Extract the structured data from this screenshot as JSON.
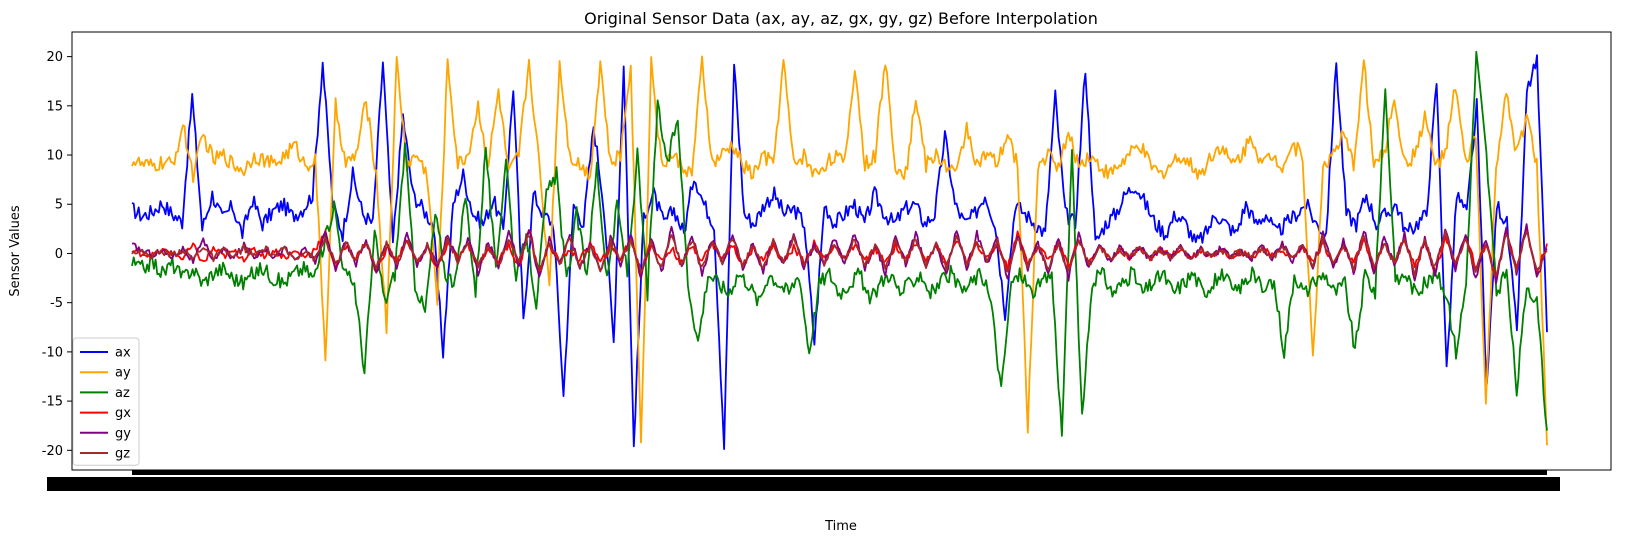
{
  "chart_data": {
    "type": "line",
    "title": "Original Sensor Data (ax, ay, az, gx, gy, gz) Before Interpolation",
    "xlabel": "Time",
    "ylabel": "Sensor Values",
    "ylim": [
      -22,
      22.5
    ],
    "yticks": [
      -20,
      -15,
      -10,
      -5,
      0,
      5,
      10,
      15,
      20
    ],
    "xlim": [
      0,
      1
    ],
    "grid": false,
    "legend": "lower-left",
    "x_tick_labels_note": "",
    "series": [
      {
        "name": "ax",
        "color": "#0000ff",
        "values": [
          4.5,
          3.8,
          4.2,
          5.1,
          4.0,
          3.2,
          16.0,
          2.5,
          6.0,
          3.5,
          4.8,
          2.0,
          5.5,
          3.0,
          4.2,
          5.0,
          3.8,
          4.5,
          6.0,
          19.5,
          5.0,
          2.0,
          8.0,
          4.0,
          3.0,
          19.5,
          1.0,
          14.0,
          6.0,
          4.5,
          3.0,
          -10.0,
          5.0,
          8.0,
          4.0,
          3.0,
          5.5,
          2.5,
          17.0,
          -7.0,
          6.0,
          4.0,
          3.0,
          -14.5,
          5.0,
          3.0,
          13.0,
          5.0,
          -9.0,
          19.5,
          -19.5,
          4.0,
          6.0,
          3.0,
          4.5,
          2.0,
          8.0,
          5.0,
          3.0,
          -19.5,
          19.5,
          4.0,
          3.0,
          5.0,
          6.0,
          4.0,
          4.5,
          3.0,
          -9.0,
          5.0,
          3.0,
          4.0,
          5.0,
          3.0,
          6.0,
          4.0,
          3.0,
          4.5,
          5.0,
          3.0,
          4.0,
          12.0,
          5.0,
          3.0,
          4.0,
          6.0,
          3.0,
          -6.0,
          5.0,
          4.0,
          3.0,
          2.0,
          16.0,
          4.0,
          3.0,
          19.0,
          1.0,
          3.0,
          4.0,
          6.0,
          7.0,
          5.0,
          3.0,
          2.0,
          4.0,
          3.0,
          1.0,
          2.0,
          4.0,
          3.0,
          2.0,
          5.0,
          3.0,
          4.0,
          2.0,
          3.0,
          4.0,
          5.0,
          3.0,
          2.0,
          19.5,
          4.0,
          3.0,
          6.0,
          3.0,
          4.0,
          5.0,
          2.0,
          3.0,
          4.0,
          17.5,
          -12.0,
          6.0,
          4.0,
          15.0,
          -14.0,
          5.0,
          3.0,
          -8.0,
          16.5,
          19.5,
          -8.0
        ]
      },
      {
        "name": "ay",
        "color": "#ffa500",
        "values": [
          9.5,
          9.0,
          8.8,
          9.2,
          9.0,
          13.0,
          8.0,
          12.0,
          9.5,
          10.0,
          9.0,
          8.5,
          10.0,
          9.5,
          9.0,
          10.0,
          11.0,
          9.0,
          9.5,
          -10.5,
          15.0,
          9.0,
          10.0,
          15.5,
          8.0,
          -7.5,
          19.5,
          9.0,
          10.0,
          8.0,
          -5.0,
          19.5,
          9.0,
          10.0,
          15.0,
          9.0,
          16.5,
          8.0,
          10.0,
          19.5,
          9.0,
          -3.0,
          19.5,
          10.0,
          9.0,
          8.0,
          19.5,
          9.0,
          10.0,
          19.5,
          -19.5,
          19.5,
          9.0,
          10.0,
          9.0,
          8.0,
          19.5,
          9.0,
          10.0,
          11.0,
          9.0,
          8.0,
          10.0,
          9.0,
          19.5,
          9.0,
          10.0,
          8.0,
          9.0,
          10.0,
          9.0,
          19.0,
          9.0,
          10.0,
          19.5,
          9.0,
          8.0,
          16.0,
          9.0,
          10.0,
          9.0,
          8.0,
          13.0,
          9.0,
          10.0,
          9.0,
          12.0,
          9.0,
          -17.5,
          9.0,
          10.0,
          9.0,
          12.0,
          9.0,
          10.0,
          9.0,
          8.0,
          9.0,
          10.0,
          11.0,
          9.0,
          8.0,
          9.0,
          10.0,
          9.0,
          8.0,
          10.0,
          11.0,
          9.0,
          10.0,
          12.0,
          9.0,
          10.0,
          9.0,
          11.0,
          10.0,
          -11.0,
          9.0,
          10.0,
          12.0,
          9.0,
          19.5,
          9.0,
          10.0,
          16.0,
          9.0,
          10.0,
          14.0,
          9.0,
          10.0,
          17.0,
          9.0,
          12.0,
          -15.5,
          9.0,
          16.0,
          10.0,
          14.0,
          9.0,
          -19.5
        ]
      },
      {
        "name": "az",
        "color": "#008000",
        "values": [
          -1.0,
          -1.5,
          -0.8,
          -2.0,
          -1.0,
          -2.5,
          -1.5,
          -3.0,
          -2.0,
          -1.5,
          -2.5,
          -3.0,
          -2.0,
          -1.5,
          -2.5,
          -3.0,
          -2.0,
          -1.5,
          -2.5,
          1.0,
          5.0,
          -2.0,
          -3.0,
          -12.0,
          2.0,
          -5.0,
          -2.0,
          11.0,
          -3.0,
          -6.0,
          4.0,
          -2.0,
          -3.0,
          6.0,
          -4.0,
          11.0,
          -2.0,
          10.0,
          -3.0,
          2.0,
          -5.0,
          6.0,
          8.0,
          -3.0,
          4.0,
          -2.0,
          9.0,
          -3.0,
          5.0,
          -2.0,
          10.0,
          -4.0,
          15.0,
          9.0,
          14.0,
          -3.0,
          -9.0,
          -2.0,
          -3.0,
          -4.0,
          -2.0,
          -3.0,
          -5.0,
          -2.0,
          -3.0,
          -4.0,
          -2.0,
          -10.0,
          -3.0,
          -2.0,
          -4.0,
          -3.0,
          -2.0,
          -5.0,
          -3.0,
          -2.0,
          -4.0,
          -3.0,
          -2.0,
          -4.0,
          -3.0,
          -2.0,
          -4.0,
          -3.0,
          -2.0,
          -5.0,
          -14.0,
          -3.0,
          -2.0,
          -4.0,
          -3.0,
          -2.0,
          -18.5,
          10.0,
          -17.0,
          -3.0,
          -2.0,
          -4.0,
          -3.0,
          -2.0,
          -4.0,
          -3.0,
          -2.0,
          -4.0,
          -3.0,
          -2.0,
          -4.0,
          -3.0,
          -2.0,
          -4.0,
          -3.0,
          -2.0,
          -4.0,
          -3.0,
          -10.0,
          -2.0,
          -4.0,
          -3.0,
          -2.0,
          -4.0,
          -3.0,
          -10.0,
          -2.0,
          -4.0,
          17.0,
          -3.0,
          -2.0,
          -4.0,
          -3.0,
          -2.0,
          -4.0,
          -10.0,
          -3.0,
          20.5,
          10.0,
          -4.0,
          -2.0,
          -14.0,
          -3.0,
          -5.0,
          -18.0
        ]
      },
      {
        "name": "gx",
        "color": "#ff0000",
        "values": [
          0.2,
          0.0,
          -0.2,
          0.3,
          0.0,
          -0.5,
          0.8,
          -1.0,
          0.5,
          -0.3,
          0.2,
          -0.5,
          0.4,
          -0.2,
          0.3,
          -0.4,
          0.2,
          -0.3,
          0.5,
          2.0,
          -1.5,
          0.8,
          -0.5,
          1.2,
          -2.0,
          0.6,
          -0.8,
          1.5,
          -1.0,
          0.5,
          -1.5,
          1.0,
          -0.5,
          0.8,
          -1.2,
          0.6,
          -0.8,
          1.0,
          -1.5,
          2.5,
          -2.0,
          1.0,
          -1.0,
          0.5,
          -0.8,
          1.2,
          -1.0,
          0.6,
          -0.5,
          1.5,
          -2.0,
          1.0,
          -0.8,
          0.5,
          -1.0,
          0.8,
          -0.6,
          1.0,
          -0.5,
          0.8,
          -1.2,
          0.6,
          -0.5,
          0.8,
          -1.0,
          0.6,
          -0.8,
          1.0,
          -0.5,
          0.8,
          -0.6,
          1.0,
          -0.8,
          0.5,
          -1.0,
          0.8,
          -0.6,
          1.0,
          -0.5,
          0.8,
          -1.2,
          1.5,
          -1.0,
          0.8,
          -0.6,
          1.0,
          -1.5,
          2.0,
          -1.0,
          0.8,
          -0.6,
          1.0,
          -1.2,
          1.5,
          -1.0,
          0.8,
          -0.6,
          0.5,
          -0.4,
          0.6,
          -0.5,
          0.4,
          -0.3,
          0.5,
          -0.4,
          0.3,
          -0.2,
          0.4,
          -0.3,
          0.2,
          -0.4,
          0.5,
          -0.3,
          0.4,
          -0.5,
          0.6,
          -0.8,
          1.0,
          -1.2,
          0.8,
          -1.0,
          1.2,
          -1.5,
          1.0,
          -0.8,
          1.5,
          -1.2,
          1.0,
          -2.0,
          1.5,
          -1.0,
          2.0,
          -1.5,
          1.0,
          -2.5,
          2.0,
          -1.5,
          2.5,
          -2.0,
          1.0
        ]
      },
      {
        "name": "gy",
        "color": "#800080",
        "values": [
          0.8,
          0.3,
          -0.1,
          0.2,
          -0.3,
          0.5,
          -0.8,
          1.2,
          -0.6,
          0.4,
          -0.5,
          0.8,
          -0.4,
          0.6,
          -0.3,
          0.5,
          -0.6,
          0.4,
          -0.8,
          2.0,
          -1.5,
          1.2,
          -1.0,
          1.5,
          -2.0,
          1.2,
          -1.5,
          2.0,
          -1.2,
          1.0,
          -1.5,
          2.0,
          -1.0,
          1.5,
          -2.0,
          1.2,
          -1.5,
          2.0,
          -1.0,
          2.5,
          -2.5,
          1.5,
          -1.2,
          2.0,
          -1.5,
          1.0,
          -2.0,
          1.5,
          -1.0,
          2.0,
          -2.5,
          1.5,
          -2.0,
          2.5,
          -1.5,
          2.0,
          -2.0,
          1.5,
          -1.0,
          2.0,
          -1.5,
          1.0,
          -2.0,
          1.5,
          -1.0,
          2.0,
          -1.5,
          1.0,
          -1.2,
          1.5,
          -1.0,
          2.0,
          -1.5,
          1.0,
          -2.0,
          1.5,
          -1.0,
          2.0,
          -1.5,
          1.0,
          -2.0,
          2.5,
          -1.5,
          2.0,
          -1.0,
          1.5,
          -2.5,
          2.0,
          -1.5,
          1.0,
          -2.0,
          1.5,
          -2.5,
          2.0,
          -1.5,
          1.0,
          -0.8,
          0.6,
          -0.5,
          0.8,
          -0.6,
          0.5,
          -0.4,
          0.6,
          -0.5,
          0.4,
          -0.3,
          0.5,
          -0.4,
          0.3,
          -0.5,
          0.8,
          -0.6,
          1.0,
          -0.8,
          1.2,
          -1.5,
          2.0,
          -1.5,
          1.2,
          -2.0,
          2.5,
          -2.0,
          1.5,
          -1.2,
          2.0,
          -2.5,
          1.5,
          -2.0,
          2.5,
          -1.5,
          2.0,
          -2.5,
          1.5,
          -3.0,
          2.5,
          -2.0,
          3.0,
          -2.5,
          0.5
        ]
      },
      {
        "name": "gz",
        "color": "#a52a2a",
        "values": [
          0.3,
          0.1,
          -0.2,
          0.2,
          -0.1,
          0.4,
          -0.6,
          0.8,
          -0.5,
          0.3,
          -0.4,
          0.6,
          -0.3,
          0.5,
          -0.2,
          0.4,
          -0.5,
          0.3,
          -0.6,
          1.5,
          -1.2,
          1.0,
          -0.8,
          1.2,
          -1.5,
          1.0,
          -1.2,
          1.5,
          -1.0,
          0.8,
          -1.2,
          1.5,
          -0.8,
          1.2,
          -1.5,
          1.0,
          -1.2,
          1.5,
          -0.8,
          2.0,
          -2.0,
          1.2,
          -1.0,
          1.5,
          -1.2,
          0.8,
          -1.5,
          1.2,
          -0.8,
          1.5,
          -2.0,
          1.2,
          -1.5,
          2.0,
          -1.2,
          1.5,
          -1.5,
          1.2,
          -0.8,
          1.5,
          -1.2,
          0.8,
          -1.5,
          1.2,
          -0.8,
          1.5,
          -1.2,
          0.8,
          -1.0,
          1.2,
          -0.8,
          1.5,
          -1.2,
          0.8,
          -1.5,
          1.2,
          -0.8,
          1.5,
          -1.2,
          0.8,
          -1.5,
          2.0,
          -1.2,
          1.5,
          -0.8,
          1.2,
          -2.0,
          1.5,
          -1.2,
          0.8,
          -1.5,
          1.2,
          -2.0,
          1.5,
          -1.2,
          0.8,
          -0.6,
          0.5,
          -0.4,
          0.6,
          -0.5,
          0.4,
          -0.3,
          0.5,
          -0.4,
          0.3,
          -0.2,
          0.4,
          -0.3,
          0.2,
          -0.4,
          0.6,
          -0.5,
          0.8,
          -0.6,
          1.0,
          -1.2,
          1.5,
          -1.2,
          1.0,
          -1.5,
          2.0,
          -1.5,
          1.2,
          -1.0,
          1.5,
          -2.0,
          1.2,
          -1.5,
          2.0,
          -1.2,
          1.5,
          -2.0,
          1.2,
          -2.5,
          2.0,
          -1.5,
          2.5,
          -2.0,
          0.3
        ]
      }
    ]
  }
}
